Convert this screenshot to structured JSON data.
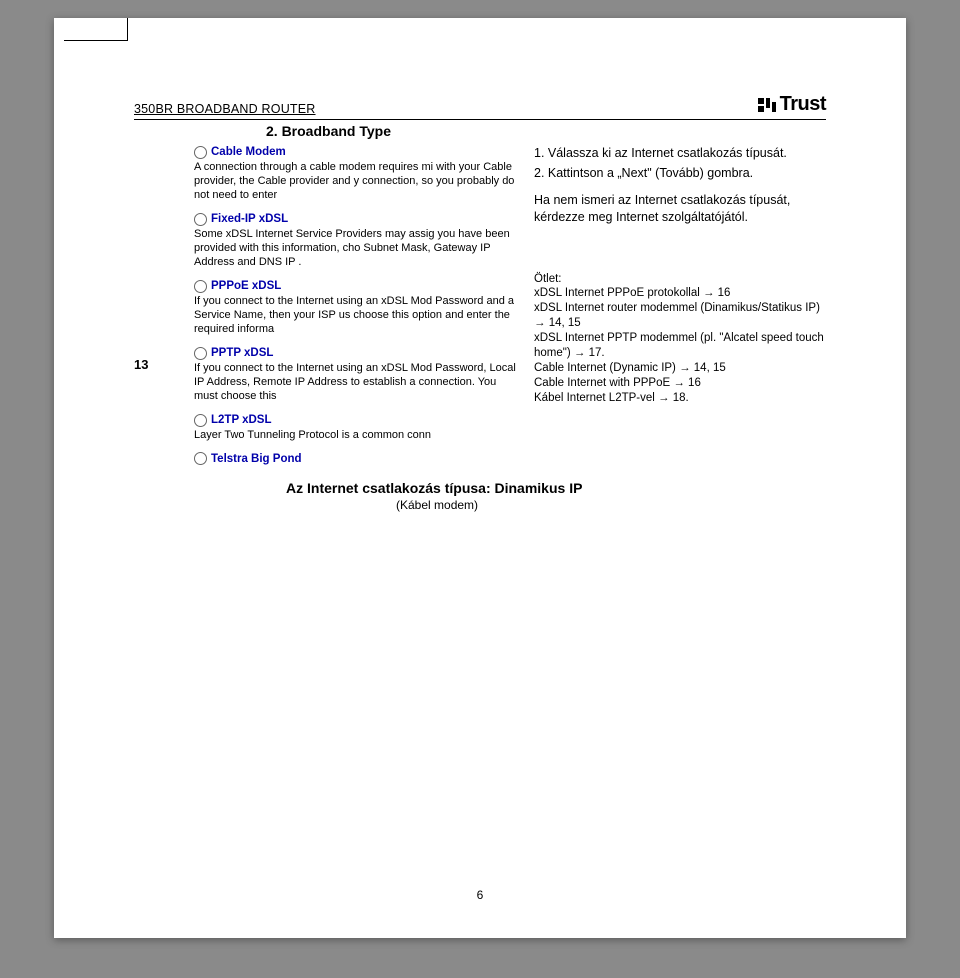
{
  "header": {
    "running_title": "350BR BROADBAND ROUTER",
    "logo_text": "Trust"
  },
  "section_heading": "2. Broadband Type",
  "step_number": "13",
  "screenshot": {
    "options": [
      {
        "title": "Cable Modem",
        "desc": "A connection through a cable modem requires mi with your Cable provider, the Cable provider and y connection, so you probably do not need to enter"
      },
      {
        "title": "Fixed-IP xDSL",
        "desc": "Some xDSL Internet Service Providers may assig you have been provided with this information, cho Subnet Mask, Gateway IP Address and DNS IP ."
      },
      {
        "title": "PPPoE xDSL",
        "desc": "If you connect to the Internet using an xDSL Mod Password and a Service Name, then your ISP us choose this option and enter the required informa"
      },
      {
        "title": "PPTP xDSL",
        "desc": "If you connect to the Internet using an xDSL Mod Password, Local IP Address, Remote IP Address to establish a connection. You must choose this"
      },
      {
        "title": "L2TP xDSL",
        "desc": "Layer Two Tunneling Protocol is a common conn"
      },
      {
        "title": "Telstra Big Pond",
        "desc": ""
      }
    ]
  },
  "instructions": {
    "line1": "1.   Válassza ki az Internet csatlakozás típusát.",
    "line2": "2.   Kattintson a „Next\" (Tovább) gombra.",
    "para": "Ha nem ismeri az Internet csatlakozás típusát, kérdezze meg Internet szolgáltatójától."
  },
  "hint": {
    "label": "Ötlet:",
    "l1": "xDSL Internet PPPoE protokollal → 16",
    "l2": "xDSL Internet router modemmel (Dinamikus/Statikus IP) → 14, 15",
    "l3": "xDSL Internet PPTP modemmel (pl. \"Alcatel speed touch home\") → 17.",
    "l4": "Cable Internet (Dynamic IP) → 14, 15",
    "l5": "Cable Internet with PPPoE → 16",
    "l6": "Kábel Internet L2TP-vel → 18."
  },
  "footer": {
    "line": "Az Internet csatlakozás típusa: Dinamikus IP",
    "sub": "(Kábel modem)"
  },
  "page_number": "6"
}
